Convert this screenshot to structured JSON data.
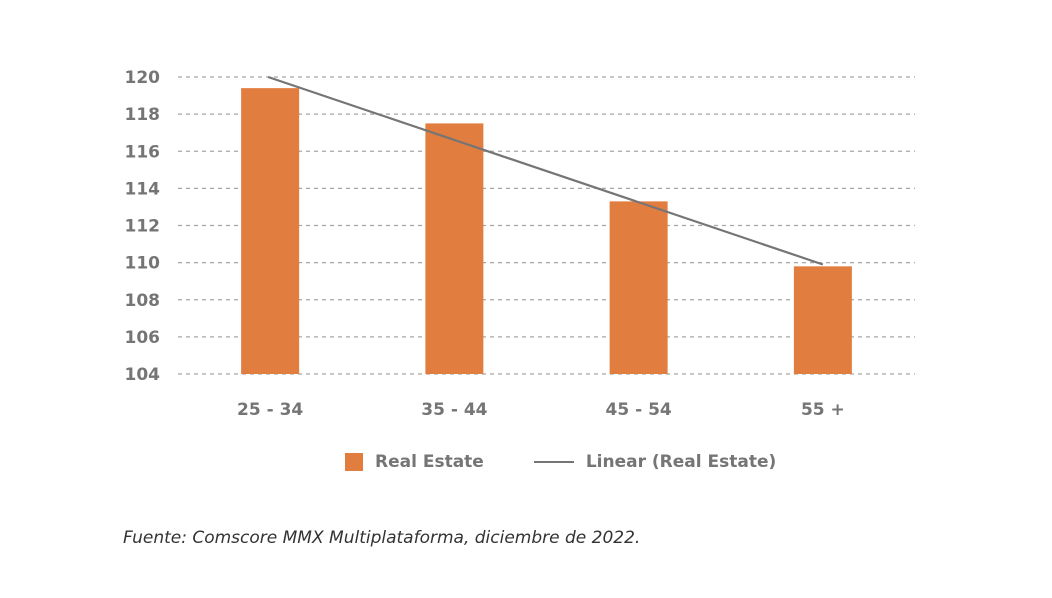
{
  "chart_data": {
    "type": "bar",
    "categories": [
      "25 - 34",
      "35 - 44",
      "45 - 54",
      "55 +"
    ],
    "series": [
      {
        "name": "Real Estate",
        "values": [
          119.4,
          117.5,
          113.3,
          109.8
        ],
        "color": "#E27D40"
      }
    ],
    "trendline": {
      "name": "Linear (Real Estate)",
      "type": "linear",
      "start": 120.0,
      "end": 109.9,
      "color": "#757575"
    },
    "ylim": [
      104,
      120
    ],
    "yticks": [
      104,
      106,
      108,
      110,
      112,
      114,
      116,
      118,
      120
    ],
    "grid": true,
    "gridstyle": "dashed",
    "legend_position": "bottom"
  },
  "source": "Fuente: Comscore MMX Multiplataforma, diciembre de 2022."
}
